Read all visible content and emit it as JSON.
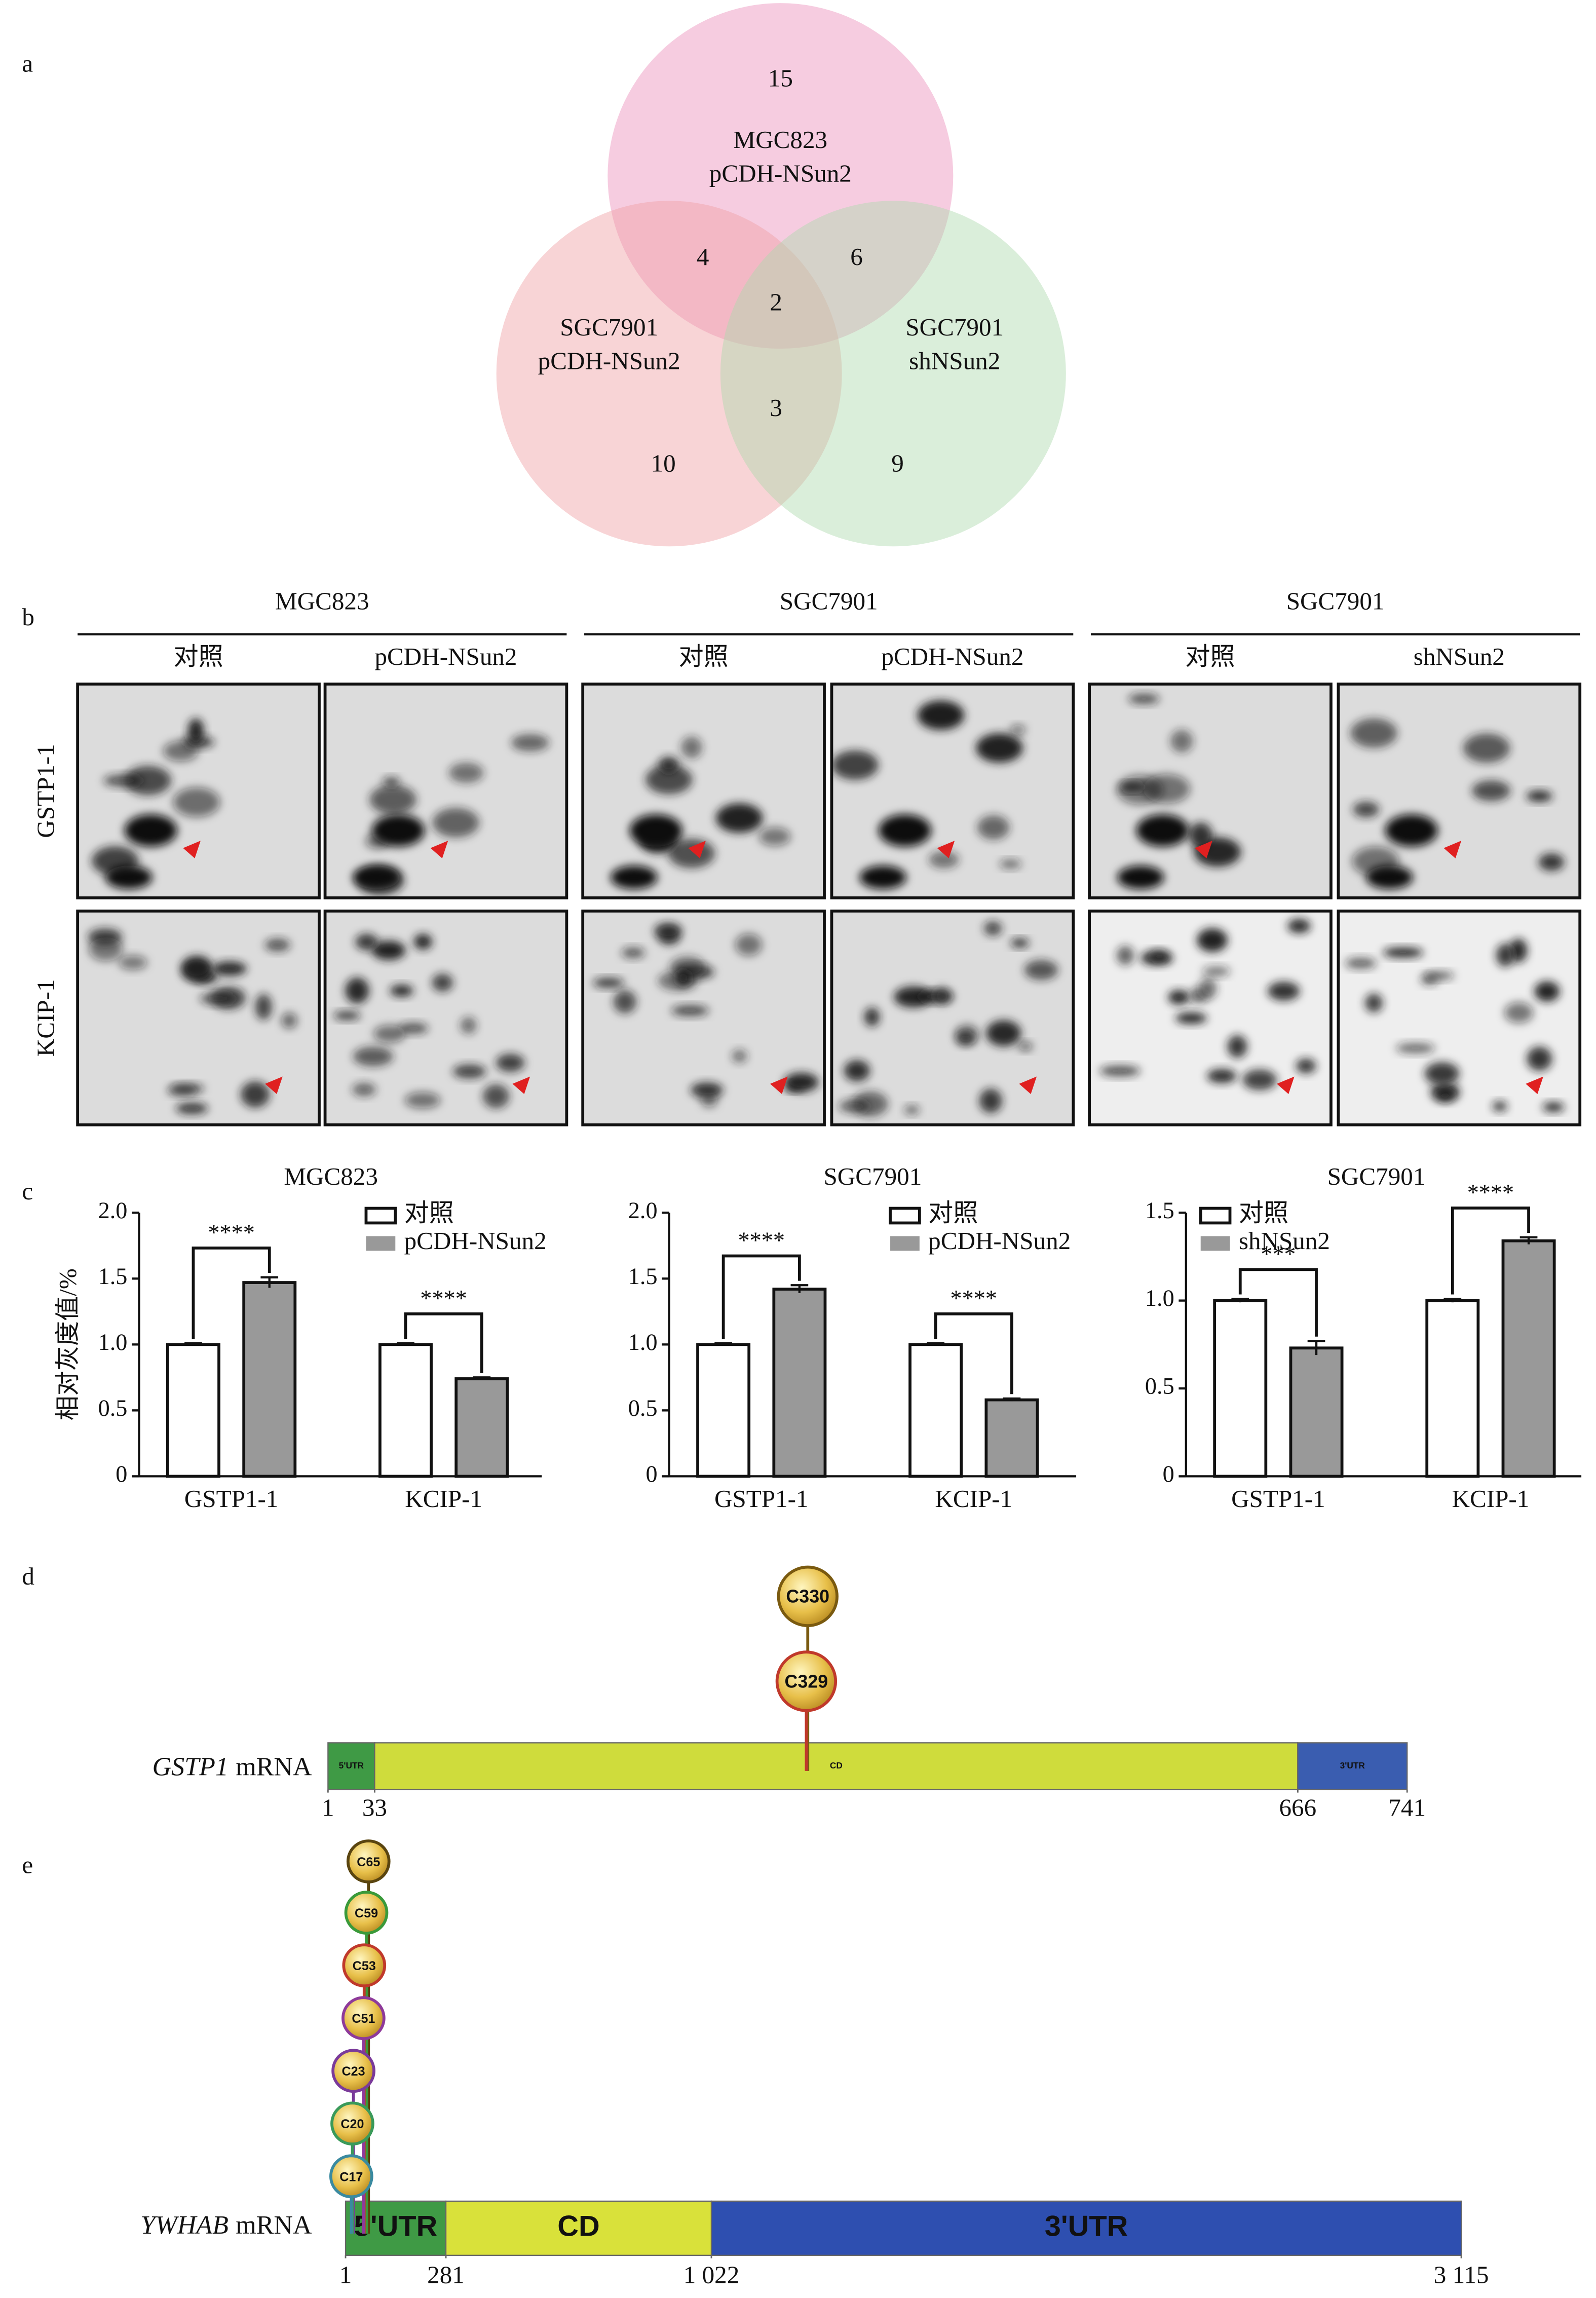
{
  "panel_labels": [
    "a",
    "b",
    "c",
    "d",
    "e"
  ],
  "venn": {
    "sets": [
      {
        "lines": [
          "MGC823",
          "pCDH-NSun2"
        ],
        "color": "#ec8fbb"
      },
      {
        "lines": [
          "SGC7901",
          "pCDH-NSun2"
        ],
        "color": "#f0a0a4"
      },
      {
        "lines": [
          "SGC7901",
          "shNSun2"
        ],
        "color": "#acd9ad"
      }
    ],
    "regions": [
      15,
      4,
      6,
      2,
      3,
      10,
      9
    ]
  },
  "gels": {
    "groups": [
      {
        "title": "MGC823",
        "columns": [
          "对照",
          "pCDH-NSun2"
        ]
      },
      {
        "title": "SGC7901",
        "columns": [
          "对照",
          "pCDH-NSun2"
        ]
      },
      {
        "title": "SGC7901",
        "columns": [
          "对照",
          "shNSun2"
        ]
      }
    ],
    "rows": [
      "GSTP1-1",
      "KCIP-1"
    ]
  },
  "chart_data": [
    {
      "type": "bar",
      "title": "MGC823",
      "ylabel": "相对灰度值/%",
      "categories": [
        "GSTP1-1",
        "KCIP-1"
      ],
      "series": [
        {
          "name": "对照",
          "color": "#ffffff",
          "values": [
            1,
            1
          ],
          "errors": [
            0.01,
            0.01
          ]
        },
        {
          "name": "pCDH-NSun2",
          "color": "#999999",
          "values": [
            1.47,
            0.74
          ],
          "errors": [
            0.04,
            0.01
          ]
        }
      ],
      "ylim": [
        0,
        2
      ],
      "yticks": [
        0,
        0.5,
        {
          "value": 1,
          "label": "1.0"
        },
        1.5,
        {
          "value": 2,
          "label": "2.0"
        }
      ],
      "annotations": [
        {
          "text": "****",
          "category": 0
        },
        {
          "text": "****",
          "category": 1
        }
      ]
    },
    {
      "type": "bar",
      "title": "SGC7901",
      "categories": [
        "GSTP1-1",
        "KCIP-1"
      ],
      "series": [
        {
          "name": "对照",
          "color": "#ffffff",
          "values": [
            1,
            1
          ],
          "errors": [
            0.01,
            0.01
          ]
        },
        {
          "name": "pCDH-NSun2",
          "color": "#999999",
          "values": [
            1.42,
            0.58
          ],
          "errors": [
            0.03,
            0.01
          ]
        }
      ],
      "ylim": [
        0,
        2
      ],
      "yticks": [
        0,
        0.5,
        {
          "value": 1,
          "label": "1.0"
        },
        1.5,
        {
          "value": 2,
          "label": "2.0"
        }
      ],
      "annotations": [
        {
          "text": "****",
          "category": 0
        },
        {
          "text": "****",
          "category": 1
        }
      ]
    },
    {
      "type": "bar",
      "title": "SGC7901",
      "categories": [
        "GSTP1-1",
        "KCIP-1"
      ],
      "series": [
        {
          "name": "对照",
          "color": "#ffffff",
          "values": [
            1,
            1
          ],
          "errors": [
            0.01,
            0.01
          ]
        },
        {
          "name": "shNSun2",
          "color": "#999999",
          "values": [
            0.73,
            1.34
          ],
          "errors": [
            0.04,
            0.02
          ]
        }
      ],
      "ylim": [
        0,
        1.5
      ],
      "yticks": [
        0,
        0.5,
        {
          "value": 1,
          "label": "1.0"
        },
        1.5
      ],
      "annotations": [
        {
          "text": "***",
          "category": 0
        },
        {
          "text": "****",
          "category": 1
        }
      ]
    }
  ],
  "mrna": [
    {
      "gene": "GSTP1",
      "suffix": "mRNA",
      "ticks": [
        1,
        33,
        666,
        741
      ],
      "segments": [
        {
          "label": "5'UTR",
          "color": "#3f9a45"
        },
        {
          "label": "CD",
          "color": "#cfdc3c"
        },
        {
          "label": "3'UTR",
          "color": "#3a5db0"
        }
      ],
      "sites": [
        {
          "label": "C330",
          "position": 330,
          "color": "#7a5a10"
        },
        {
          "label": "C329",
          "position": 329,
          "color": "#c0392b"
        }
      ]
    },
    {
      "gene": "YWHAB",
      "suffix": "mRNA",
      "ticks": [
        1,
        281,
        {
          "value": 1022,
          "label": "1 022"
        },
        {
          "value": 3115,
          "label": "3 115"
        }
      ],
      "segments": [
        {
          "label": "5'UTR",
          "color": "#3f9a45"
        },
        {
          "label": "CD",
          "color": "#d9e13a"
        },
        {
          "label": "3'UTR",
          "color": "#2e4fb0"
        }
      ],
      "sites": [
        {
          "label": "C65",
          "position": 65,
          "color": "#5a4510"
        },
        {
          "label": "C59",
          "position": 59,
          "color": "#3a9a3a"
        },
        {
          "label": "C53",
          "position": 53,
          "color": "#c0392b"
        },
        {
          "label": "C51",
          "position": 51,
          "color": "#8e3a9a"
        },
        {
          "label": "C23",
          "position": 23,
          "color": "#7a3a9a"
        },
        {
          "label": "C20",
          "position": 20,
          "color": "#3a9a5a"
        },
        {
          "label": "C17",
          "position": 17,
          "color": "#3a8aa0"
        }
      ]
    }
  ]
}
